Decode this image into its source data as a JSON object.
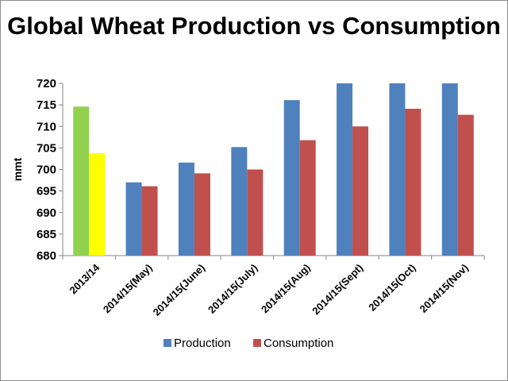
{
  "chart_data": {
    "type": "bar",
    "title": "Global Wheat Production vs Consumption",
    "xlabel": "",
    "ylabel": "mmt",
    "ylim": [
      680,
      720
    ],
    "yticks": [
      680,
      685,
      690,
      695,
      700,
      705,
      710,
      715,
      720
    ],
    "grid": false,
    "legend": "bottom",
    "categories": [
      "2013/14",
      "2014/15(May)",
      "2014/15(June)",
      "2014/15(July)",
      "2014/15(Aug)",
      "2014/15(Sept)",
      "2014/15(Oct)",
      "2014/15(Nov)"
    ],
    "series": [
      {
        "name": "Production",
        "color": "#4f81bd",
        "values": [
          714.6,
          697.0,
          701.6,
          705.2,
          716.1,
          720.4,
          720.4,
          720.4
        ]
      },
      {
        "name": "Consumption",
        "color": "#c0504d",
        "values": [
          703.8,
          696.1,
          699.1,
          700.0,
          706.8,
          710.0,
          714.1,
          712.7
        ]
      }
    ],
    "highlight_colors": {
      "2013/14": [
        "#92d050",
        "#ffff00"
      ]
    }
  }
}
